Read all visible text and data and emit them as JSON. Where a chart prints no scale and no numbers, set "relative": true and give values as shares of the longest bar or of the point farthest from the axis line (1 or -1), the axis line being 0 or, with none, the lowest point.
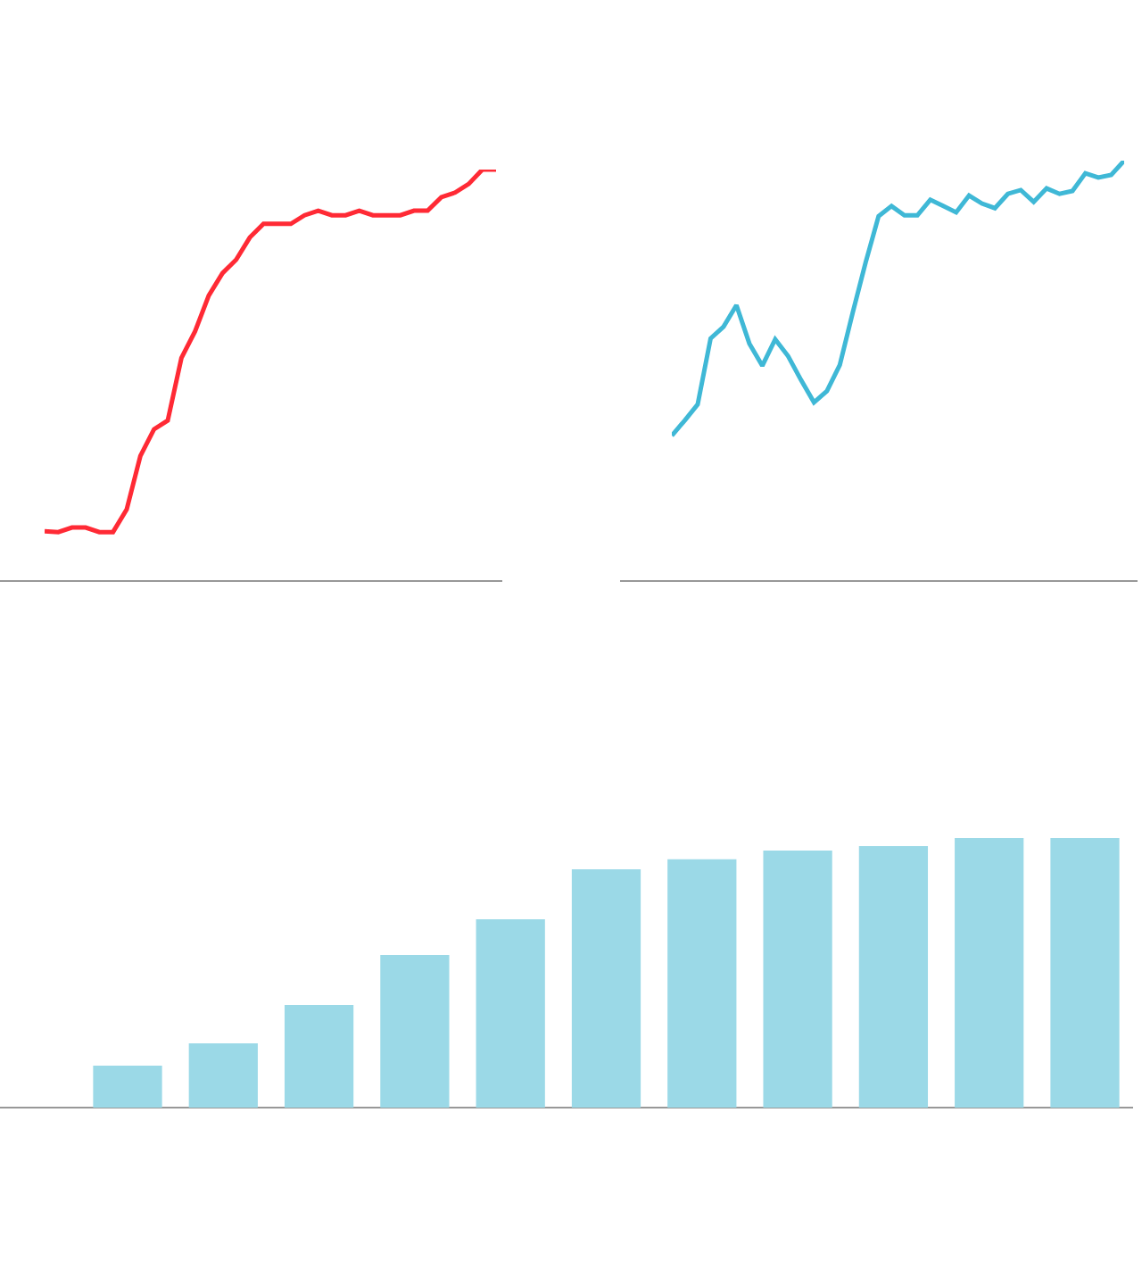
{
  "chart_data": [
    {
      "type": "line",
      "relative": true,
      "categories": [
        null,
        null,
        null,
        null,
        null,
        null,
        null,
        null,
        null,
        null,
        null,
        null,
        null,
        null,
        null,
        null,
        null,
        null,
        null,
        null,
        null,
        null,
        null,
        null,
        null,
        null,
        null,
        null,
        null,
        null,
        null,
        null,
        null,
        null
      ],
      "series": [
        {
          "color": "#ff2a35",
          "values": [
            0.121,
            0.119,
            0.13,
            0.13,
            0.119,
            0.119,
            0.174,
            0.304,
            0.369,
            0.39,
            0.542,
            0.607,
            0.694,
            0.748,
            0.781,
            0.835,
            0.868,
            0.868,
            0.868,
            0.889,
            0.9,
            0.889,
            0.889,
            0.9,
            0.889,
            0.889,
            0.889,
            0.9,
            0.9,
            0.933,
            0.944,
            0.965,
            1,
            1
          ]
        }
      ]
    },
    {
      "type": "line",
      "relative": true,
      "categories": [
        null,
        null,
        null,
        null,
        null,
        null,
        null,
        null,
        null,
        null,
        null,
        null,
        null,
        null,
        null,
        null,
        null,
        null,
        null,
        null,
        null,
        null,
        null,
        null,
        null,
        null,
        null,
        null,
        null,
        null,
        null,
        null,
        null,
        null,
        null,
        null
      ],
      "series": [
        {
          "color": "#3fb8d6",
          "values": [
            0.346,
            0.382,
            0.42,
            0.577,
            0.605,
            0.656,
            0.565,
            0.512,
            0.575,
            0.535,
            0.478,
            0.425,
            0.452,
            0.514,
            0.639,
            0.758,
            0.868,
            0.892,
            0.87,
            0.87,
            0.907,
            0.892,
            0.877,
            0.917,
            0.898,
            0.887,
            0.921,
            0.93,
            0.902,
            0.934,
            0.921,
            0.928,
            0.97,
            0.96,
            0.966,
            1
          ]
        }
      ]
    },
    {
      "type": "bar",
      "relative": true,
      "categories": [
        null,
        null,
        null,
        null,
        null,
        null,
        null,
        null,
        null,
        null,
        null
      ],
      "series": [
        {
          "color": "#9bd9e7",
          "values": [
            0.156,
            0.238,
            0.381,
            0.566,
            0.699,
            0.884,
            0.921,
            0.954,
            0.97,
            1,
            1
          ]
        }
      ]
    }
  ]
}
